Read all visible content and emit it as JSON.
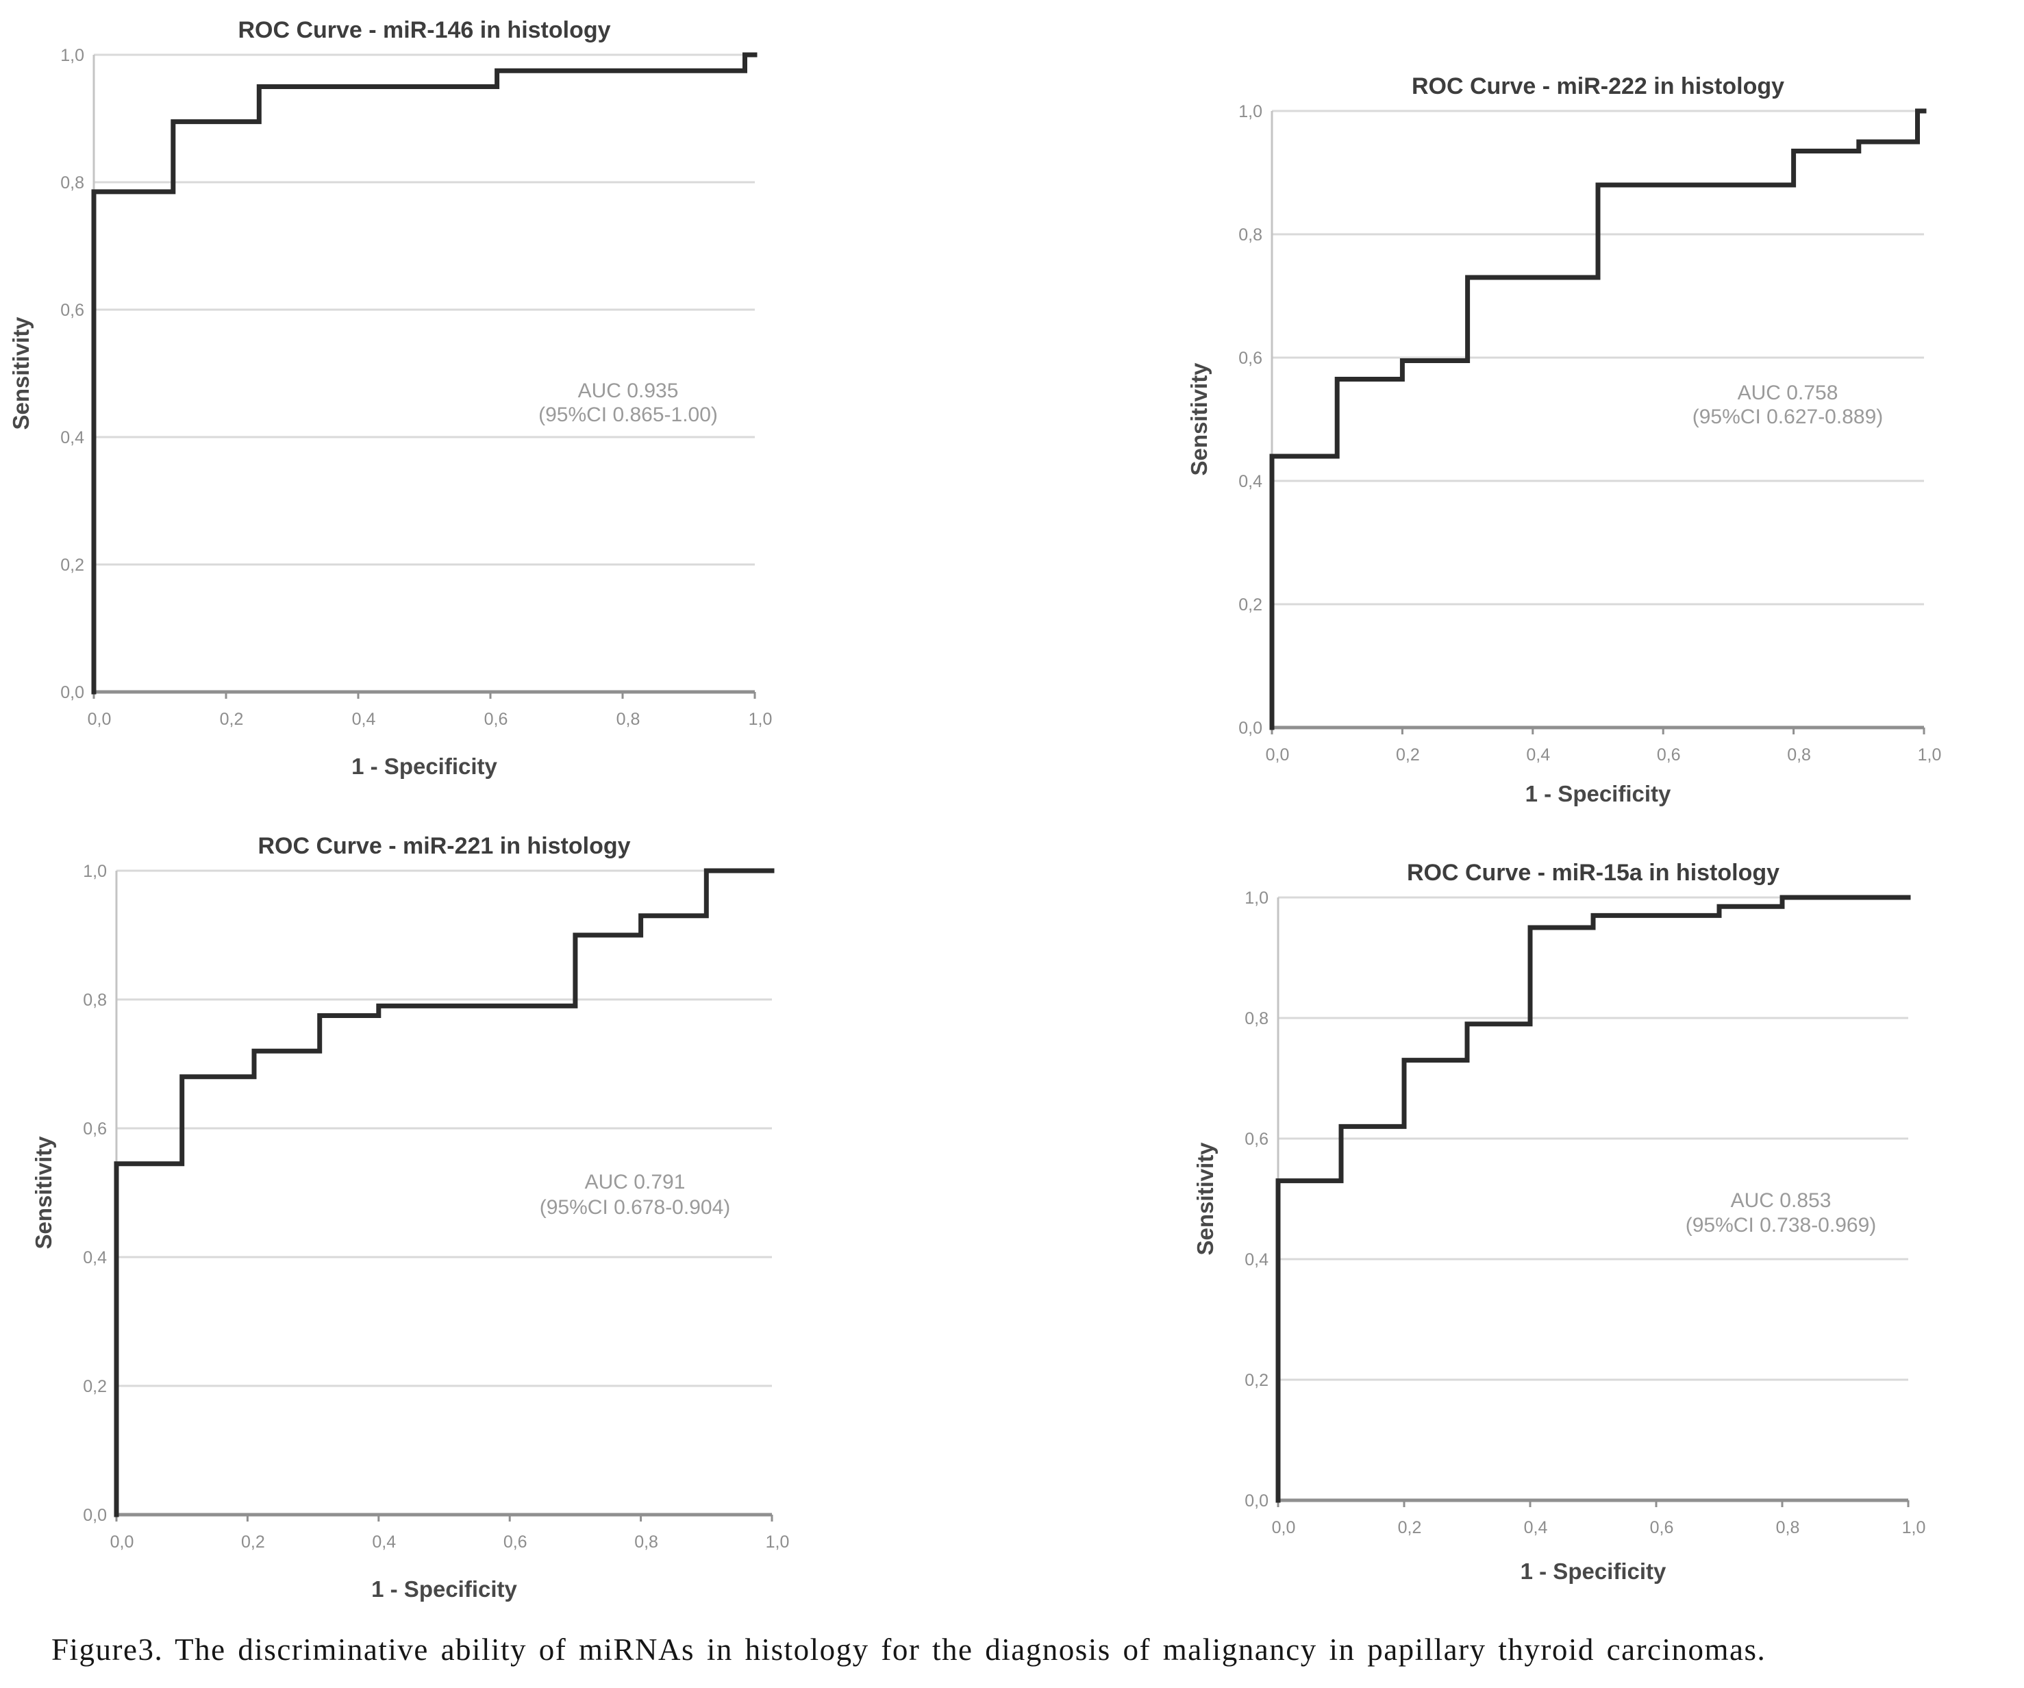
{
  "figure": {
    "caption": "Figure3. The discriminative ability of miRNAs in histology for the diagnosis of malignancy in papillary thyroid carcinomas."
  },
  "shared": {
    "xlabel": "1 - Specificity",
    "ylabel": "Sensitivity",
    "x_tick_labels": [
      "0,0",
      "0,2",
      "0,4",
      "0,6",
      "0,8",
      "1,0"
    ],
    "y_tick_labels": [
      "0,0",
      "0,2",
      "0,4",
      "0,6",
      "0,8",
      "1,0"
    ],
    "x_tick_values": [
      0,
      0.2,
      0.4,
      0.6,
      0.8,
      1.0
    ],
    "y_tick_values": [
      0,
      0.2,
      0.4,
      0.6,
      0.8,
      1.0
    ]
  },
  "style_colors": {
    "curve": "#2b2b2b",
    "gridline": "#d9d9d9",
    "y_axis": "#c4c4c4",
    "x_axis": "#8f8f8f",
    "tick_label": "#8d8d8d",
    "title": "#3d3d3d",
    "axis_label": "#484848",
    "auc_text": "#9a9a9a"
  },
  "chart_data": [
    {
      "id": "mir-146",
      "type": "line",
      "subtype": "roc-step",
      "title": "ROC Curve - miR-146 in histology",
      "xlabel": "1 - Specificity",
      "ylabel": "Sensitivity",
      "xlim": [
        0,
        1
      ],
      "ylim": [
        0,
        1
      ],
      "grid": true,
      "auc": 0.935,
      "auc_label": "AUC 0.935",
      "ci_label": "(95%CI 0.865-1.00)",
      "series": [
        {
          "name": "ROC curve",
          "points": [
            [
              0,
              0
            ],
            [
              0,
              0.785
            ],
            [
              0.12,
              0.785
            ],
            [
              0.12,
              0.895
            ],
            [
              0.25,
              0.895
            ],
            [
              0.25,
              0.95
            ],
            [
              0.61,
              0.95
            ],
            [
              0.61,
              0.975
            ],
            [
              0.985,
              0.975
            ],
            [
              0.985,
              1.0
            ],
            [
              1.0,
              1.0
            ]
          ]
        }
      ]
    },
    {
      "id": "mir-222",
      "type": "line",
      "subtype": "roc-step",
      "title": "ROC Curve - miR-222 in histology",
      "xlabel": "1 - Specificity",
      "ylabel": "Sensitivity",
      "xlim": [
        0,
        1
      ],
      "ylim": [
        0,
        1
      ],
      "grid": true,
      "auc": 0.758,
      "auc_label": "AUC 0.758",
      "ci_label": "(95%CI 0.627-0.889)",
      "series": [
        {
          "name": "ROC curve",
          "points": [
            [
              0,
              0
            ],
            [
              0,
              0.44
            ],
            [
              0.1,
              0.44
            ],
            [
              0.1,
              0.565
            ],
            [
              0.2,
              0.565
            ],
            [
              0.2,
              0.595
            ],
            [
              0.3,
              0.595
            ],
            [
              0.3,
              0.73
            ],
            [
              0.5,
              0.73
            ],
            [
              0.5,
              0.88
            ],
            [
              0.8,
              0.88
            ],
            [
              0.8,
              0.935
            ],
            [
              0.9,
              0.935
            ],
            [
              0.9,
              0.95
            ],
            [
              0.99,
              0.95
            ],
            [
              0.99,
              1.0
            ],
            [
              1.0,
              1.0
            ]
          ]
        }
      ]
    },
    {
      "id": "mir-221",
      "type": "line",
      "subtype": "roc-step",
      "title": "ROC Curve - miR-221 in histology",
      "xlabel": "1 - Specificity",
      "ylabel": "Sensitivity",
      "xlim": [
        0,
        1
      ],
      "ylim": [
        0,
        1
      ],
      "grid": true,
      "auc": 0.791,
      "auc_label": "AUC 0.791",
      "ci_label": "(95%CI 0.678-0.904)",
      "series": [
        {
          "name": "ROC curve",
          "points": [
            [
              0,
              0
            ],
            [
              0,
              0.545
            ],
            [
              0.1,
              0.545
            ],
            [
              0.1,
              0.68
            ],
            [
              0.21,
              0.68
            ],
            [
              0.21,
              0.72
            ],
            [
              0.31,
              0.72
            ],
            [
              0.31,
              0.775
            ],
            [
              0.4,
              0.775
            ],
            [
              0.4,
              0.79
            ],
            [
              0.7,
              0.79
            ],
            [
              0.7,
              0.9
            ],
            [
              0.8,
              0.9
            ],
            [
              0.8,
              0.93
            ],
            [
              0.9,
              0.93
            ],
            [
              0.9,
              1.0
            ],
            [
              1.0,
              1.0
            ]
          ]
        }
      ]
    },
    {
      "id": "mir-15a",
      "type": "line",
      "subtype": "roc-step",
      "title": "ROC Curve - miR-15a in histology",
      "xlabel": "1 - Specificity",
      "ylabel": "Sensitivity",
      "xlim": [
        0,
        1
      ],
      "ylim": [
        0,
        1
      ],
      "grid": true,
      "auc": 0.853,
      "auc_label": "AUC 0.853",
      "ci_label": "(95%CI 0.738-0.969)",
      "series": [
        {
          "name": "ROC curve",
          "points": [
            [
              0,
              0
            ],
            [
              0,
              0.53
            ],
            [
              0.1,
              0.53
            ],
            [
              0.1,
              0.62
            ],
            [
              0.2,
              0.62
            ],
            [
              0.2,
              0.73
            ],
            [
              0.3,
              0.73
            ],
            [
              0.3,
              0.79
            ],
            [
              0.4,
              0.79
            ],
            [
              0.4,
              0.95
            ],
            [
              0.5,
              0.95
            ],
            [
              0.5,
              0.97
            ],
            [
              0.7,
              0.97
            ],
            [
              0.7,
              0.985
            ],
            [
              0.8,
              0.985
            ],
            [
              0.8,
              1.0
            ],
            [
              1.0,
              1.0
            ]
          ]
        }
      ]
    }
  ]
}
